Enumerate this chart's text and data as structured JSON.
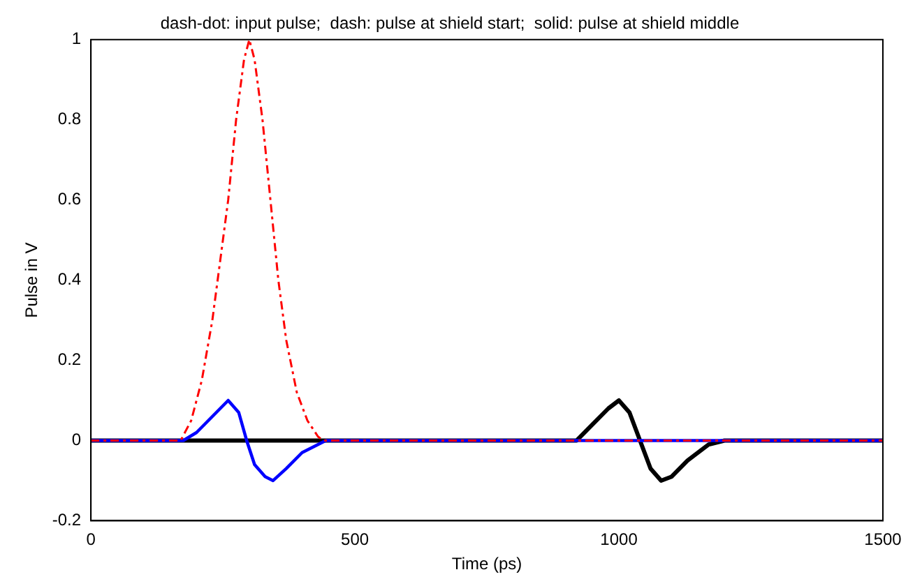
{
  "chart_data": {
    "type": "line",
    "title": "dash-dot: input pulse;  dash: pulse at shield start;  solid: pulse at shield middle",
    "xlabel": "Time (ps)",
    "ylabel": "Pulse in V",
    "xlim": [
      0,
      1500
    ],
    "xticks": [
      0,
      500,
      1000,
      1500
    ],
    "ylim": [
      -0.2,
      1
    ],
    "yticks": [
      -0.2,
      0,
      0.2,
      0.4,
      0.6,
      0.8,
      1
    ],
    "grid": false,
    "legend": false,
    "marker": "none",
    "series": [
      {
        "color": "#ff0000",
        "line_style": "dashed",
        "x": [
          0,
          170,
          190,
          210,
          230,
          245,
          260,
          275,
          290,
          300,
          310,
          325,
          340,
          355,
          370,
          390,
          410,
          430,
          440,
          1500
        ],
        "values": [
          0,
          0,
          0.05,
          0.15,
          0.3,
          0.45,
          0.6,
          0.8,
          0.95,
          1,
          0.95,
          0.8,
          0.6,
          0.4,
          0.25,
          0.12,
          0.05,
          0.01,
          0,
          0
        ]
      },
      {
        "color": "#0000ff",
        "line_style": "solid",
        "x": [
          0,
          175,
          200,
          230,
          260,
          280,
          295,
          310,
          330,
          345,
          370,
          400,
          430,
          445,
          1500
        ],
        "values": [
          0,
          0,
          0.02,
          0.06,
          0.1,
          0.07,
          0,
          -0.06,
          -0.09,
          -0.1,
          -0.07,
          -0.03,
          -0.01,
          0,
          0
        ]
      },
      {
        "color": "#000000",
        "line_style": "solid",
        "x": [
          0,
          920,
          950,
          980,
          1000,
          1020,
          1040,
          1060,
          1080,
          1100,
          1130,
          1170,
          1200,
          1500
        ],
        "values": [
          0,
          0,
          0.04,
          0.08,
          0.1,
          0.07,
          0,
          -0.07,
          -0.1,
          -0.09,
          -0.05,
          -0.01,
          0,
          0
        ]
      }
    ]
  }
}
